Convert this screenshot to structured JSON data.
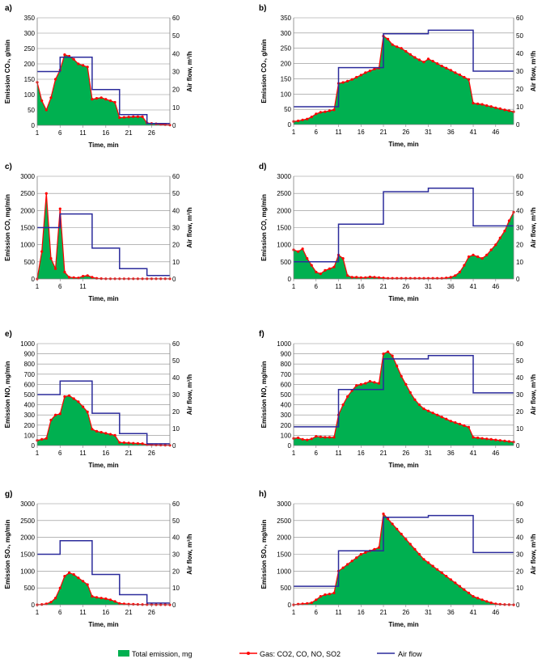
{
  "colors": {
    "area": "#00b050",
    "gas": "#ff0000",
    "air": "#2b2b9b",
    "grid": "#8c8c8c",
    "axis": "#808080"
  },
  "legend": {
    "area_label": "Total emission, mg",
    "gas_label": "Gas: CO2, CO, NO, SO2",
    "air_label": "Air flow"
  },
  "chart_data": [
    {
      "panel": "a)",
      "type": "area",
      "ylabel": "Emission CO₂, g/min",
      "y2label": "Air flow, m³/h",
      "xlabel": "Time, min",
      "ylim": [
        0,
        350
      ],
      "yticks": [
        0,
        50,
        100,
        150,
        200,
        250,
        300,
        350
      ],
      "y2lim": [
        0,
        60
      ],
      "y2ticks": [
        0,
        10,
        20,
        30,
        40,
        50,
        60
      ],
      "xticks": [
        1,
        6,
        11,
        16,
        21,
        26
      ],
      "xmax": 30,
      "emission": [
        140,
        80,
        50,
        90,
        150,
        180,
        230,
        225,
        215,
        200,
        195,
        190,
        85,
        88,
        90,
        85,
        80,
        75,
        25,
        26,
        27,
        28,
        28,
        28,
        8,
        6,
        5,
        3,
        2,
        1
      ],
      "airflow": [
        30,
        30,
        30,
        30,
        30,
        38,
        38,
        38,
        38,
        38,
        38,
        38,
        20,
        20,
        20,
        20,
        20,
        20,
        6,
        6,
        6,
        6,
        6,
        6,
        1,
        1,
        1,
        1,
        1,
        1
      ]
    },
    {
      "panel": "b)",
      "type": "area",
      "ylabel": "Emission CO₂, g/min",
      "y2label": "Air flow, m³/h",
      "xlabel": "Time, min",
      "ylim": [
        0,
        350
      ],
      "yticks": [
        0,
        50,
        100,
        150,
        200,
        250,
        300,
        350
      ],
      "y2lim": [
        0,
        60
      ],
      "y2ticks": [
        0,
        10,
        20,
        30,
        40,
        50,
        60
      ],
      "xticks": [
        1,
        6,
        11,
        16,
        21,
        26,
        31,
        36,
        41,
        46
      ],
      "xmax": 50,
      "emission": [
        10,
        12,
        15,
        18,
        25,
        35,
        40,
        42,
        45,
        48,
        135,
        138,
        142,
        148,
        155,
        162,
        170,
        176,
        182,
        185,
        290,
        280,
        262,
        255,
        250,
        240,
        230,
        220,
        212,
        205,
        215,
        208,
        200,
        192,
        185,
        178,
        170,
        163,
        155,
        148,
        70,
        68,
        66,
        62,
        59,
        55,
        52,
        48,
        45,
        42
      ],
      "airflow": [
        10,
        10,
        10,
        10,
        10,
        10,
        10,
        10,
        10,
        10,
        32,
        32,
        32,
        32,
        32,
        32,
        32,
        32,
        32,
        32,
        51,
        51,
        51,
        51,
        51,
        51,
        51,
        51,
        51,
        51,
        53,
        53,
        53,
        53,
        53,
        53,
        53,
        53,
        53,
        53,
        30,
        30,
        30,
        30,
        30,
        30,
        30,
        30,
        30,
        30
      ]
    },
    {
      "panel": "c)",
      "type": "area",
      "ylabel": "Emission CO, mg/min",
      "y2label": "Air flow, m³/h",
      "xlabel": "Time, min",
      "ylim": [
        0,
        3000
      ],
      "yticks": [
        0,
        500,
        1000,
        1500,
        2000,
        2500,
        3000
      ],
      "y2lim": [
        0,
        60
      ],
      "y2ticks": [
        0,
        10,
        20,
        30,
        40,
        50,
        60
      ],
      "xticks": [
        1,
        6,
        11
      ],
      "xmax": 30,
      "emission": [
        0,
        800,
        2500,
        600,
        300,
        2050,
        200,
        50,
        40,
        30,
        80,
        100,
        50,
        20,
        10,
        5,
        5,
        5,
        5,
        5,
        5,
        5,
        5,
        5,
        5,
        5,
        5,
        5,
        5,
        5
      ],
      "airflow": [
        30,
        30,
        30,
        30,
        30,
        38,
        38,
        38,
        38,
        38,
        38,
        38,
        18,
        18,
        18,
        18,
        18,
        18,
        6,
        6,
        6,
        6,
        6,
        6,
        2,
        2,
        2,
        2,
        2,
        2
      ]
    },
    {
      "panel": "d)",
      "type": "area",
      "ylabel": "Emission CO, mg/min",
      "y2label": "Air flow, m³/h",
      "xlabel": "Time, min",
      "ylim": [
        0,
        3000
      ],
      "yticks": [
        0,
        500,
        1000,
        1500,
        2000,
        2500,
        3000
      ],
      "y2lim": [
        0,
        60
      ],
      "y2ticks": [
        0,
        10,
        20,
        30,
        40,
        50,
        60
      ],
      "xticks": [
        1,
        6,
        11,
        16,
        21,
        26,
        31,
        36,
        41,
        46
      ],
      "xmax": 50,
      "emission": [
        850,
        800,
        880,
        600,
        400,
        200,
        150,
        250,
        300,
        350,
        700,
        600,
        100,
        50,
        50,
        40,
        40,
        60,
        50,
        40,
        30,
        20,
        20,
        20,
        20,
        20,
        20,
        20,
        20,
        20,
        20,
        20,
        20,
        20,
        30,
        50,
        100,
        200,
        400,
        650,
        700,
        650,
        600,
        700,
        850,
        1000,
        1200,
        1400,
        1700,
        1950
      ],
      "airflow": [
        10,
        10,
        10,
        10,
        10,
        10,
        10,
        10,
        10,
        10,
        32,
        32,
        32,
        32,
        32,
        32,
        32,
        32,
        32,
        32,
        51,
        51,
        51,
        51,
        51,
        51,
        51,
        51,
        51,
        51,
        53,
        53,
        53,
        53,
        53,
        53,
        53,
        53,
        53,
        53,
        31,
        31,
        31,
        31,
        31,
        31,
        31,
        31,
        31,
        31
      ]
    },
    {
      "panel": "e)",
      "type": "area",
      "ylabel": "Emission NO, mg/min",
      "y2label": "Air flow, m³/h",
      "xlabel": "Time, min",
      "ylim": [
        0,
        1000
      ],
      "yticks": [
        0,
        100,
        200,
        300,
        400,
        500,
        600,
        700,
        800,
        900,
        1000
      ],
      "y2lim": [
        0,
        60
      ],
      "y2ticks": [
        0,
        10,
        20,
        30,
        40,
        50,
        60
      ],
      "xticks": [
        1,
        6,
        11,
        16,
        21,
        26
      ],
      "xmax": 30,
      "emission": [
        50,
        60,
        70,
        250,
        300,
        310,
        480,
        490,
        460,
        430,
        380,
        330,
        160,
        140,
        130,
        120,
        110,
        100,
        30,
        28,
        25,
        22,
        20,
        18,
        8,
        6,
        5,
        4,
        3,
        2
      ],
      "airflow": [
        30,
        30,
        30,
        30,
        30,
        38,
        38,
        38,
        38,
        38,
        38,
        38,
        19,
        19,
        19,
        19,
        19,
        19,
        7,
        7,
        7,
        7,
        7,
        7,
        1,
        1,
        1,
        1,
        1,
        1
      ]
    },
    {
      "panel": "f)",
      "type": "area",
      "ylabel": "Emission NO, mg/min",
      "y2label": "Air flow, m³/h",
      "xlabel": "Time, min",
      "ylim": [
        0,
        1000
      ],
      "yticks": [
        0,
        100,
        200,
        300,
        400,
        500,
        600,
        700,
        800,
        900,
        1000
      ],
      "y2lim": [
        0,
        60
      ],
      "y2ticks": [
        0,
        10,
        20,
        30,
        40,
        50,
        60
      ],
      "xticks": [
        1,
        6,
        11,
        16,
        21,
        26,
        31,
        36,
        41,
        46
      ],
      "xmax": 50,
      "emission": [
        70,
        75,
        60,
        55,
        65,
        90,
        85,
        80,
        80,
        80,
        300,
        400,
        480,
        540,
        590,
        600,
        610,
        630,
        620,
        610,
        900,
        920,
        880,
        780,
        680,
        600,
        520,
        450,
        400,
        360,
        340,
        320,
        300,
        280,
        260,
        240,
        225,
        210,
        195,
        180,
        80,
        75,
        70,
        65,
        60,
        55,
        50,
        45,
        40,
        35
      ],
      "airflow": [
        11,
        11,
        11,
        11,
        11,
        11,
        11,
        11,
        11,
        11,
        33,
        33,
        33,
        33,
        33,
        33,
        33,
        33,
        33,
        33,
        51,
        51,
        51,
        51,
        51,
        51,
        51,
        51,
        51,
        51,
        53,
        53,
        53,
        53,
        53,
        53,
        53,
        53,
        53,
        53,
        31,
        31,
        31,
        31,
        31,
        31,
        31,
        31,
        31,
        31
      ]
    },
    {
      "panel": "g)",
      "type": "area",
      "ylabel": "Emission SO₂, mg/min",
      "y2label": "Air flow, m³/h",
      "xlabel": "Time, min",
      "ylim": [
        0,
        3000
      ],
      "yticks": [
        0,
        500,
        1000,
        1500,
        2000,
        2500,
        3000
      ],
      "y2lim": [
        0,
        60
      ],
      "y2ticks": [
        0,
        10,
        20,
        30,
        40,
        50,
        60
      ],
      "xticks": [
        1,
        6,
        11,
        16,
        21,
        26
      ],
      "xmax": 30,
      "emission": [
        0,
        10,
        30,
        80,
        200,
        500,
        850,
        950,
        900,
        800,
        700,
        600,
        250,
        220,
        200,
        180,
        150,
        100,
        40,
        30,
        20,
        15,
        10,
        8,
        5,
        4,
        3,
        2,
        2,
        1
      ],
      "airflow": [
        30,
        30,
        30,
        30,
        30,
        38,
        38,
        38,
        38,
        38,
        38,
        38,
        18,
        18,
        18,
        18,
        18,
        18,
        6,
        6,
        6,
        6,
        6,
        6,
        1,
        1,
        1,
        1,
        1,
        1
      ]
    },
    {
      "panel": "h)",
      "type": "area",
      "ylabel": "Emission SO₂, mg/min",
      "y2label": "Air flow, m³/h",
      "xlabel": "Time, min",
      "ylim": [
        0,
        3000
      ],
      "yticks": [
        0,
        500,
        1000,
        1500,
        2000,
        2500,
        3000
      ],
      "y2lim": [
        0,
        60
      ],
      "y2ticks": [
        0,
        10,
        20,
        30,
        40,
        50,
        60
      ],
      "xticks": [
        1,
        6,
        11,
        16,
        21,
        26,
        31,
        36,
        41,
        46
      ],
      "xmax": 50,
      "emission": [
        0,
        20,
        30,
        40,
        60,
        150,
        250,
        300,
        320,
        350,
        1000,
        1100,
        1200,
        1300,
        1400,
        1500,
        1550,
        1600,
        1650,
        1700,
        2700,
        2550,
        2400,
        2250,
        2100,
        1950,
        1800,
        1650,
        1500,
        1350,
        1250,
        1150,
        1050,
        950,
        850,
        750,
        650,
        550,
        450,
        350,
        250,
        200,
        150,
        100,
        60,
        30,
        15,
        8,
        3,
        1
      ],
      "airflow": [
        11,
        11,
        11,
        11,
        11,
        11,
        11,
        11,
        11,
        11,
        32,
        32,
        32,
        32,
        32,
        32,
        32,
        32,
        32,
        32,
        52,
        52,
        52,
        52,
        52,
        52,
        52,
        52,
        52,
        52,
        53,
        53,
        53,
        53,
        53,
        53,
        53,
        53,
        53,
        53,
        31,
        31,
        31,
        31,
        31,
        31,
        31,
        31,
        31,
        31
      ]
    }
  ]
}
